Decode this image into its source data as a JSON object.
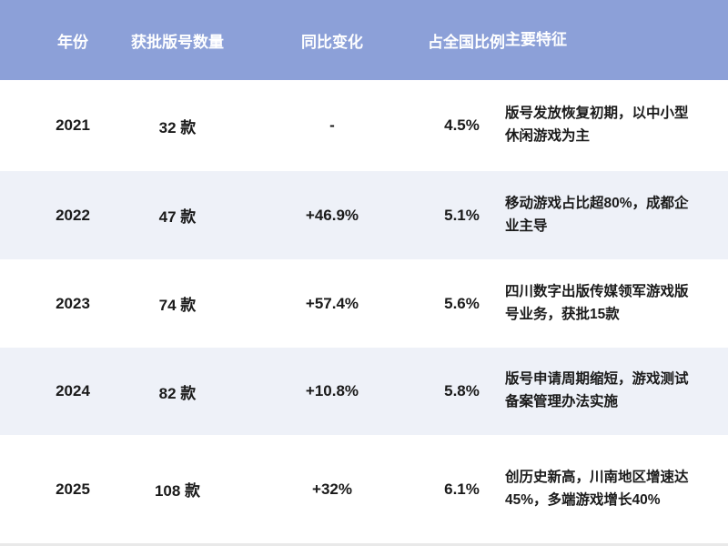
{
  "table": {
    "columns": [
      "年份",
      "获批版号数量",
      "同比变化",
      "占全国比例",
      "主要特征"
    ],
    "rows": [
      {
        "year": "2021",
        "count": "32 款",
        "yoy": "-",
        "share": "4.5%",
        "features": "版号发放恢复初期，以中小型休闲游戏为主"
      },
      {
        "year": "2022",
        "count": "47 款",
        "yoy": "+46.9%",
        "share": "5.1%",
        "features": "移动游戏占比超80%，成都企业主导"
      },
      {
        "year": "2023",
        "count": "74 款",
        "yoy": "+57.4%",
        "share": "5.6%",
        "features": "四川数字出版传媒领军游戏版号业务，获批15款"
      },
      {
        "year": "2024",
        "count": "82 款",
        "yoy": "+10.8%",
        "share": "5.8%",
        "features": "版号申请周期缩短，游戏测试备案管理办法实施"
      },
      {
        "year": "2025",
        "count": "108 款",
        "yoy": "+32%",
        "share": "6.1%",
        "features": "创历史新高，川南地区增速达45%，多端游戏增长40%"
      }
    ]
  },
  "colors": {
    "header_bg": "#8CA0D8",
    "header_text": "#FFFFFF",
    "row_bg": "#FFFFFF",
    "row_alt_bg": "#EEF1F8",
    "cell_text": "#1A1A1A",
    "bottom_strip": "#E9E9E9"
  },
  "chart_data": {
    "type": "table",
    "columns": [
      "年份",
      "获批版号数量",
      "同比变化",
      "占全国比例",
      "主要特征"
    ],
    "rows": [
      [
        "2021",
        "32 款",
        "-",
        "4.5%",
        "版号发放恢复初期，以中小型休闲游戏为主"
      ],
      [
        "2022",
        "47 款",
        "+46.9%",
        "5.1%",
        "移动游戏占比超80%，成都企业主导"
      ],
      [
        "2023",
        "74 款",
        "+57.4%",
        "5.6%",
        "四川数字出版传媒领军游戏版号业务，获批15款"
      ],
      [
        "2024",
        "82 款",
        "+10.8%",
        "5.8%",
        "版号申请周期缩短，游戏测试备案管理办法实施"
      ],
      [
        "2025",
        "108 款",
        "+32%",
        "6.1%",
        "创历史新高，川南地区增速达45%，多端游戏增长40%"
      ]
    ],
    "years": [
      2021,
      2022,
      2023,
      2024,
      2025
    ],
    "approved_counts": [
      32,
      47,
      74,
      82,
      108
    ],
    "yoy_change_pct": [
      null,
      46.9,
      57.4,
      10.8,
      32
    ],
    "national_share_pct": [
      4.5,
      5.1,
      5.6,
      5.8,
      6.1
    ]
  }
}
